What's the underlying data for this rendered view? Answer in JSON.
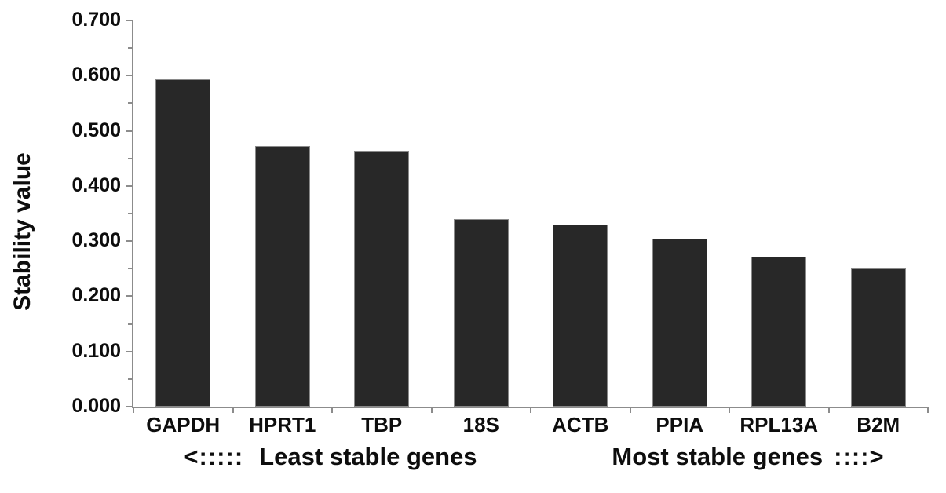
{
  "figure": {
    "background_color": "#ffffff"
  },
  "annotations": {
    "left_arrow": "<:::::",
    "left_label": "Least stable genes",
    "right_label": "Most stable genes",
    "right_arrow": "::::>"
  },
  "chart_data": {
    "type": "bar",
    "title": "",
    "categories": [
      "GAPDH",
      "HPRT1",
      "TBP",
      "18S",
      "ACTB",
      "PPIA",
      "RPL13A",
      "B2M"
    ],
    "values": [
      0.593,
      0.472,
      0.464,
      0.34,
      0.33,
      0.305,
      0.272,
      0.25
    ],
    "ylabel": "Stability value",
    "xlabel": "",
    "ylim": [
      0,
      0.7
    ],
    "ytick_interval": 0.1,
    "ytick_minor_interval": 0.05,
    "ytick_labels": [
      "0.000",
      "0.100",
      "0.200",
      "0.300",
      "0.400",
      "0.500",
      "0.600",
      "0.700"
    ],
    "x_annotation_left": "<::::: Least stable genes",
    "x_annotation_right": "Most stable genes ::::>",
    "grid": false,
    "legend_position": "none",
    "bar_color": "#282828",
    "bar_border_color": "#8a8a8a",
    "axis_color": "#8c8c8c",
    "text_color": "#0d0d0d"
  }
}
